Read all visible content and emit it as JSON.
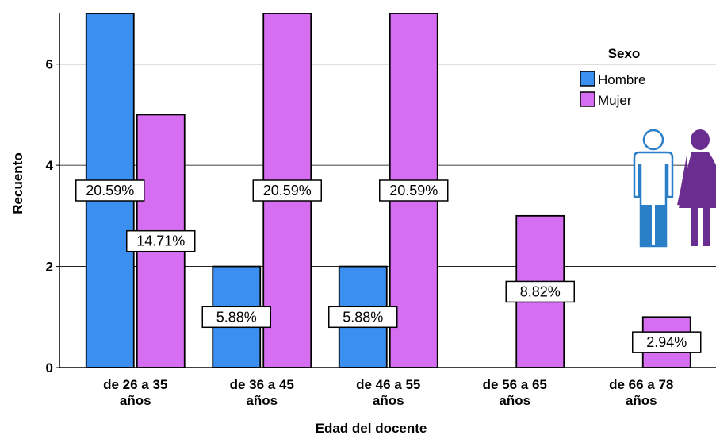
{
  "chart_data": {
    "type": "bar",
    "xlabel": "Edad del docente",
    "ylabel": "Recuento",
    "ylim": [
      0,
      7
    ],
    "yticks": [
      0,
      2,
      4,
      6
    ],
    "grid": true,
    "legend_placement": "top-right",
    "legend_title": "Sexo",
    "categories": [
      [
        "de 26 a 35",
        "años"
      ],
      [
        "de 36 a 45",
        "años"
      ],
      [
        "de 46 a 55",
        "años"
      ],
      [
        "de 56 a 65",
        "años"
      ],
      [
        "de 66 a 78",
        "años"
      ]
    ],
    "series": [
      {
        "name": "Hombre",
        "color": "#3b8ff0",
        "values": [
          7,
          2,
          2,
          0,
          0
        ],
        "labels": [
          "20.59%",
          "5.88%",
          "5.88%",
          "",
          ""
        ]
      },
      {
        "name": "Mujer",
        "color": "#d66ef2",
        "values": [
          5,
          7,
          7,
          3,
          1
        ],
        "labels": [
          "14.71%",
          "20.59%",
          "20.59%",
          "8.82%",
          "2.94%"
        ]
      }
    ],
    "icons": {
      "male": {
        "name": "male-person-icon",
        "color": "#2a7fc7"
      },
      "female": {
        "name": "female-person-icon",
        "color": "#6a2d90"
      }
    }
  }
}
